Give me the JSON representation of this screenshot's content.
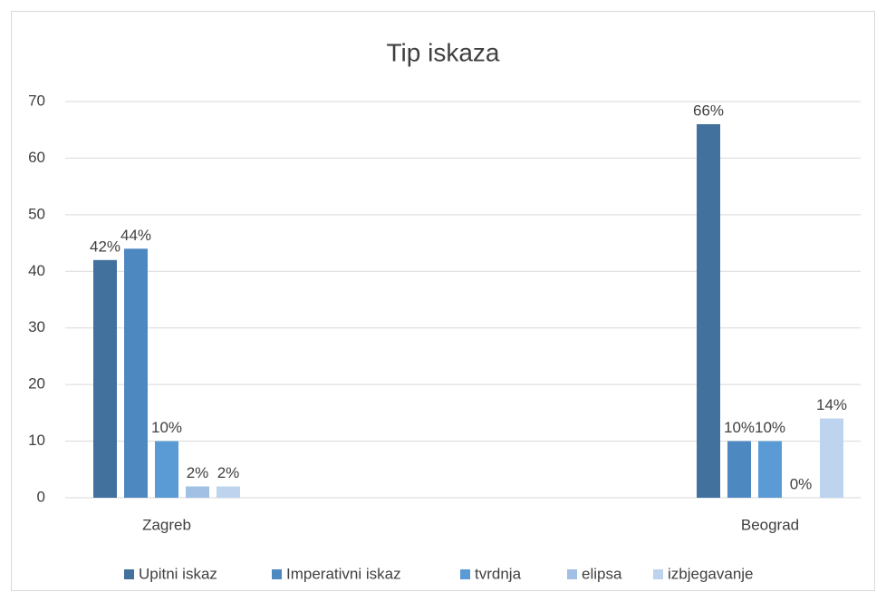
{
  "chart_data": {
    "type": "bar",
    "title": "Tip iskaza",
    "categories": [
      "Zagreb",
      "Beograd"
    ],
    "series": [
      {
        "name": "Upitni iskaz",
        "color": "#41719c",
        "values": [
          42,
          66
        ],
        "value_labels": [
          "42%",
          "66%"
        ]
      },
      {
        "name": "Imperativni iskaz",
        "color": "#4e88c0",
        "values": [
          44,
          10
        ],
        "value_labels": [
          "44%",
          "10%"
        ]
      },
      {
        "name": "tvrdnja",
        "color": "#5b9bd5",
        "values": [
          10,
          10
        ],
        "value_labels": [
          "10%",
          "10%"
        ]
      },
      {
        "name": "elipsa",
        "color": "#a2bfe4",
        "values": [
          2,
          0
        ],
        "value_labels": [
          "2%",
          "0%"
        ]
      },
      {
        "name": "izbjegavanje",
        "color": "#bdd3ee",
        "values": [
          2,
          14
        ],
        "value_labels": [
          "2%",
          "14%"
        ]
      }
    ],
    "ylim": [
      0,
      70
    ],
    "yticks": [
      0,
      10,
      20,
      30,
      40,
      50,
      60,
      70
    ],
    "grid": true,
    "legend": "bottom"
  }
}
